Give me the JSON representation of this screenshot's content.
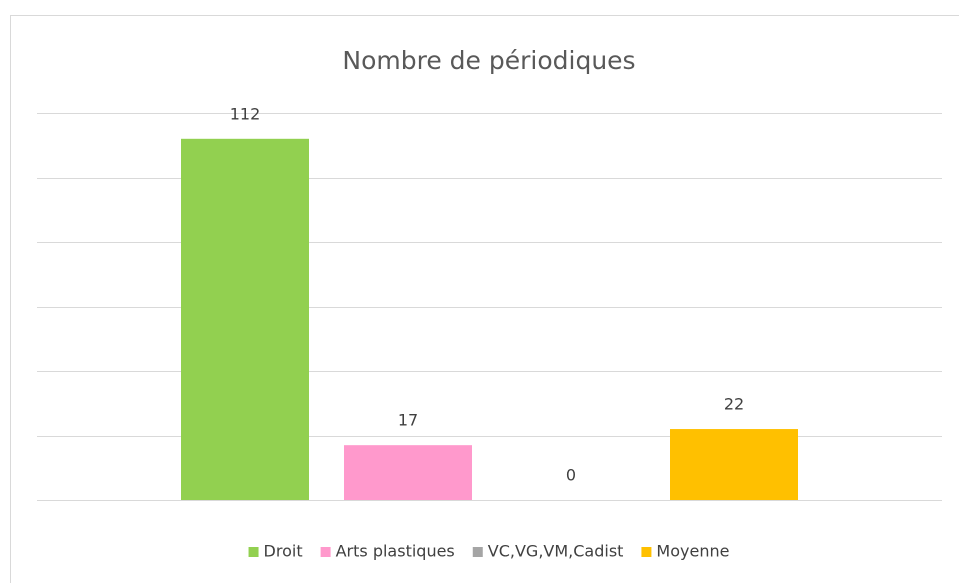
{
  "chart_data": {
    "type": "bar",
    "title": "Nombre de périodiques",
    "categories": [
      null
    ],
    "series": [
      {
        "name": "Droit",
        "color": "#92d050",
        "values": [
          112
        ]
      },
      {
        "name": "Arts plastiques",
        "color": "#ff99cc",
        "values": [
          17
        ]
      },
      {
        "name": "VC,VG,VM,Cadist",
        "color": "#a5a5a5",
        "values": [
          0
        ]
      },
      {
        "name": "Moyenne",
        "color": "#ffc000",
        "values": [
          22
        ]
      }
    ],
    "ylim": [
      0,
      120
    ],
    "yticks": [
      0,
      20,
      40,
      60,
      80,
      100,
      120
    ],
    "grid": true,
    "legend": "bottom"
  }
}
